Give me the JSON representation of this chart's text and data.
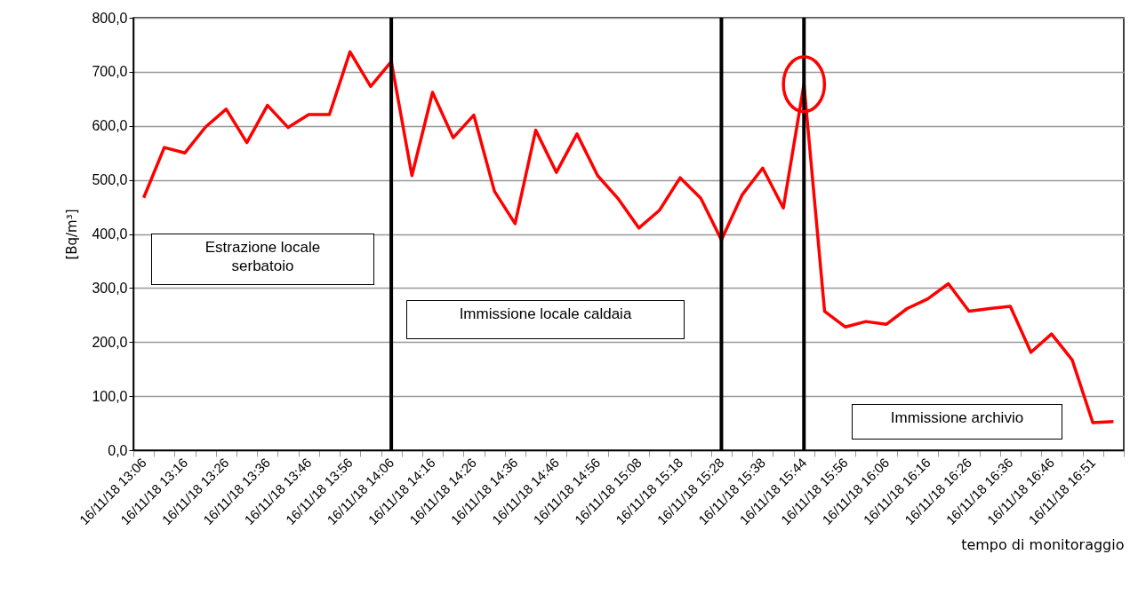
{
  "chart_data": {
    "type": "line",
    "xlabel": "tempo di monitoraggio",
    "ylabel": "[Bq/m³]",
    "categories": [
      "16/11/18 13:06",
      null,
      "16/11/18 13:16",
      null,
      "16/11/18 13:26",
      null,
      "16/11/18 13:36",
      null,
      "16/11/18 13:46",
      null,
      "16/11/18 13:56",
      null,
      "16/11/18 14:06",
      null,
      "16/11/18 14:16",
      null,
      "16/11/18 14:26",
      null,
      "16/11/18 14:36",
      null,
      "16/11/18 14:46",
      null,
      "16/11/18 14:56",
      null,
      "16/11/18 15:08",
      null,
      "16/11/18 15:18",
      null,
      "16/11/18 15:28",
      null,
      "16/11/18 15:38",
      null,
      "16/11/18 15:44",
      null,
      "16/11/18 15:56",
      null,
      "16/11/18 16:06",
      null,
      "16/11/18 16:16",
      null,
      "16/11/18 16:26",
      null,
      "16/11/18 16:36",
      null,
      "16/11/18 16:46",
      null,
      "16/11/18 16:51",
      null
    ],
    "series": [
      {
        "color": "#ff0000",
        "values": [
          467,
          560,
          550,
          598,
          631,
          569,
          638,
          597,
          621,
          621,
          737,
          673,
          719,
          508,
          662,
          578,
          620,
          479,
          419,
          592,
          514,
          585,
          508,
          465,
          411,
          444,
          504,
          466,
          389,
          472,
          522,
          448,
          677,
          257,
          228,
          238,
          233,
          262,
          280,
          308,
          257,
          262,
          266,
          181,
          215,
          167,
          51,
          53
        ]
      }
    ],
    "ylim": [
      0,
      800
    ],
    "yticks": [
      {
        "value": 0,
        "label": "0,0"
      },
      {
        "value": 100,
        "label": "100,0"
      },
      {
        "value": 200,
        "label": "200,0"
      },
      {
        "value": 300,
        "label": "300,0"
      },
      {
        "value": 400,
        "label": "400,0"
      },
      {
        "value": 500,
        "label": "500,0"
      },
      {
        "value": 600,
        "label": "600,0"
      },
      {
        "value": 700,
        "label": "700,0"
      },
      {
        "value": 800,
        "label": "800,0"
      }
    ],
    "grid": "y",
    "ref_lines": [
      {
        "axis": "x",
        "value": "16/11/18 14:06",
        "color": "#000000"
      },
      {
        "axis": "x",
        "value": "16/11/18 15:28",
        "color": "#000000"
      },
      {
        "axis": "x",
        "value": "16/11/18 15:44",
        "color": "#000000"
      }
    ],
    "annotations": [
      "Estrazione locale serbatoio",
      "Immissione locale caldaia",
      "Immissione archivio"
    ]
  }
}
